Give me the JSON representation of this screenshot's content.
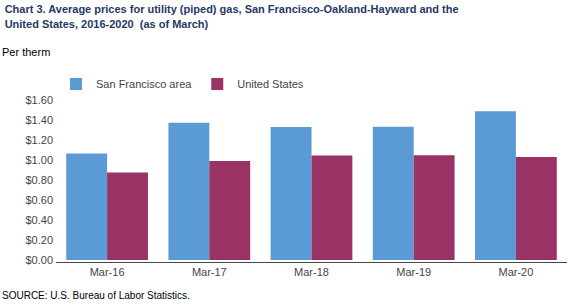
{
  "chart_data": {
    "type": "bar",
    "title": "Chart 3. Average prices for utility (piped) gas, San Francisco-Oakland-Hayward and the\nUnited States, 2016-2020  (as of March)",
    "ylabel": "Per therm",
    "source": "SOURCE: U.S. Bureau of Labor Statistics.",
    "categories": [
      "Mar-16",
      "Mar-17",
      "Mar-18",
      "Mar-19",
      "Mar-20"
    ],
    "series": [
      {
        "name": "San Francisco area",
        "color": "#5B9BD5",
        "values": [
          1.065,
          1.373,
          1.33,
          1.333,
          1.487
        ]
      },
      {
        "name": "United States",
        "color": "#993366",
        "values": [
          0.874,
          0.991,
          1.046,
          1.047,
          1.031
        ]
      }
    ],
    "ylim": [
      0.0,
      1.6
    ],
    "yticks": [
      {
        "value": 0.0,
        "label": "$0.00"
      },
      {
        "value": 0.2,
        "label": "$0.20"
      },
      {
        "value": 0.4,
        "label": "$0.40"
      },
      {
        "value": 0.6,
        "label": "$0.60"
      },
      {
        "value": 0.8,
        "label": "$0.80"
      },
      {
        "value": 1.0,
        "label": "$1.00"
      },
      {
        "value": 1.2,
        "label": "$1.20"
      },
      {
        "value": 1.4,
        "label": "$1.40"
      },
      {
        "value": 1.6,
        "label": "$1.60"
      }
    ],
    "grid": false,
    "legend": "upper left"
  }
}
